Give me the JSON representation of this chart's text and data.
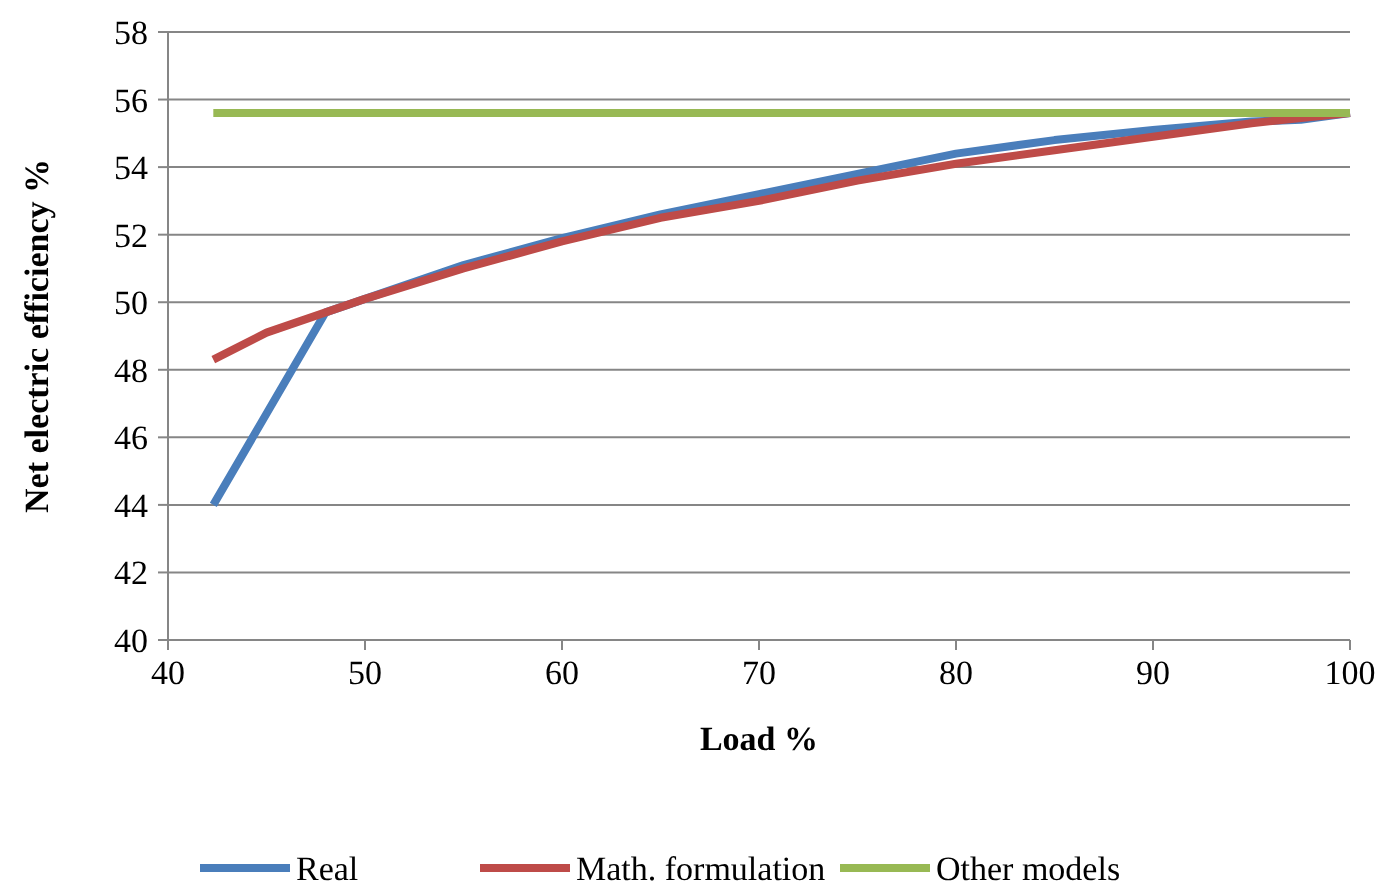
{
  "chart_data": {
    "type": "line",
    "xlabel": "Load %",
    "ylabel": "Net electric efficiency %",
    "xlim": [
      40,
      100
    ],
    "xticks": [
      40,
      50,
      60,
      70,
      80,
      90,
      100
    ],
    "ylim": [
      40,
      58
    ],
    "yticks": [
      40,
      42,
      44,
      46,
      48,
      50,
      52,
      54,
      56,
      58
    ],
    "grid": "y",
    "legend": "bottom",
    "marker": "none",
    "line_style": "solid",
    "series": [
      {
        "name": "Real",
        "color": "#4a7ebb",
        "x": [
          42.3,
          48,
          50,
          55,
          60,
          65,
          70,
          75,
          80,
          85,
          90,
          95,
          97.5,
          100
        ],
        "values": [
          44,
          49.7,
          50.1,
          51.1,
          51.9,
          52.6,
          53.2,
          53.8,
          54.4,
          54.8,
          55.1,
          55.35,
          55.4,
          55.6
        ]
      },
      {
        "name": "Math. formulation",
        "color": "#be4b48",
        "x": [
          42.3,
          45,
          48,
          50,
          55,
          60,
          65,
          70,
          75,
          80,
          85,
          90,
          95,
          100
        ],
        "values": [
          48.3,
          49.1,
          49.7,
          50.1,
          51.0,
          51.8,
          52.5,
          53.0,
          53.6,
          54.1,
          54.5,
          54.9,
          55.3,
          55.6
        ]
      },
      {
        "name": "Other models",
        "color": "#98b954",
        "x": [
          42.3,
          100
        ],
        "values": [
          55.6,
          55.6
        ]
      }
    ]
  }
}
